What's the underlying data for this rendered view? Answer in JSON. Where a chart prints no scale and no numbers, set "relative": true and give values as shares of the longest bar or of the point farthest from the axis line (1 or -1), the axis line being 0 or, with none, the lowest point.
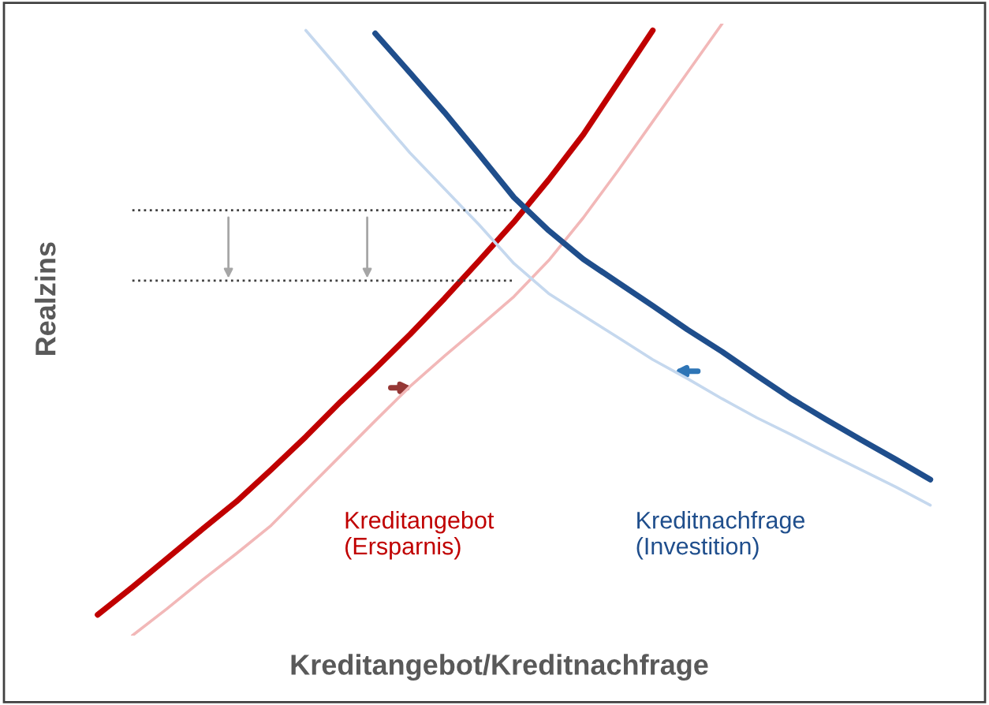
{
  "chart_data": {
    "type": "line",
    "relative": true,
    "xlabel": "Kreditangebot/Kreditnachfrage",
    "ylabel": "Realzins",
    "legend": false,
    "marker": "none",
    "categories": [
      null,
      null,
      null,
      null,
      null,
      null,
      null,
      null,
      null,
      null,
      null,
      null,
      null,
      null,
      null,
      null,
      null,
      null,
      null,
      null,
      null,
      null,
      null,
      null,
      null
    ],
    "series": [
      {
        "name": "Kreditangebot\n(Ersparnis)",
        "color": "#c00000",
        "values": [
          0.034,
          0.079,
          0.126,
          0.173,
          0.219,
          0.271,
          0.325,
          0.382,
          0.436,
          0.492,
          0.551,
          0.613,
          0.676,
          0.745,
          0.819,
          0.904,
          0.989,
          null,
          null,
          null,
          null,
          null,
          null,
          null,
          null
        ]
      },
      {
        "color": "#f2b8b8",
        "values": [
          null,
          0.0,
          0.044,
          0.09,
          0.134,
          0.18,
          0.237,
          0.294,
          0.351,
          0.407,
          0.457,
          0.505,
          0.554,
          0.613,
          0.683,
          0.76,
          0.84,
          0.92,
          1.0,
          null,
          null,
          null,
          null,
          null,
          null
        ]
      },
      {
        "name": "Kreditnachfrage\n(Investition)",
        "color": "#1f4e8c",
        "values": [
          null,
          null,
          null,
          null,
          null,
          null,
          null,
          null,
          0.984,
          0.92,
          0.855,
          0.786,
          0.716,
          0.662,
          0.615,
          0.577,
          0.539,
          0.5,
          0.464,
          0.425,
          0.387,
          0.353,
          0.32,
          0.288,
          0.255
        ]
      },
      {
        "color": "#c5d8ee",
        "values": [
          null,
          null,
          null,
          null,
          null,
          null,
          0.989,
          0.923,
          0.855,
          0.789,
          0.73,
          0.671,
          0.608,
          0.559,
          0.523,
          0.487,
          0.451,
          0.42,
          0.387,
          0.356,
          0.328,
          0.299,
          0.271,
          0.243,
          0.213
        ]
      },
      {
        "color": "#404040",
        "line_style": "dotted",
        "values": [
          null,
          0.695,
          0.695,
          0.695,
          0.695,
          0.695,
          0.695,
          0.695,
          0.695,
          0.695,
          0.695,
          0.695,
          0.695,
          null,
          null,
          null,
          null,
          null,
          null,
          null,
          null,
          null,
          null,
          null,
          null
        ]
      },
      {
        "color": "#404040",
        "line_style": "dotted",
        "values": [
          null,
          0.58,
          0.58,
          0.58,
          0.58,
          0.58,
          0.58,
          0.58,
          0.58,
          0.58,
          0.58,
          0.58,
          0.58,
          null,
          null,
          null,
          null,
          null,
          null,
          null,
          null,
          null,
          null,
          null,
          null
        ]
      }
    ]
  }
}
